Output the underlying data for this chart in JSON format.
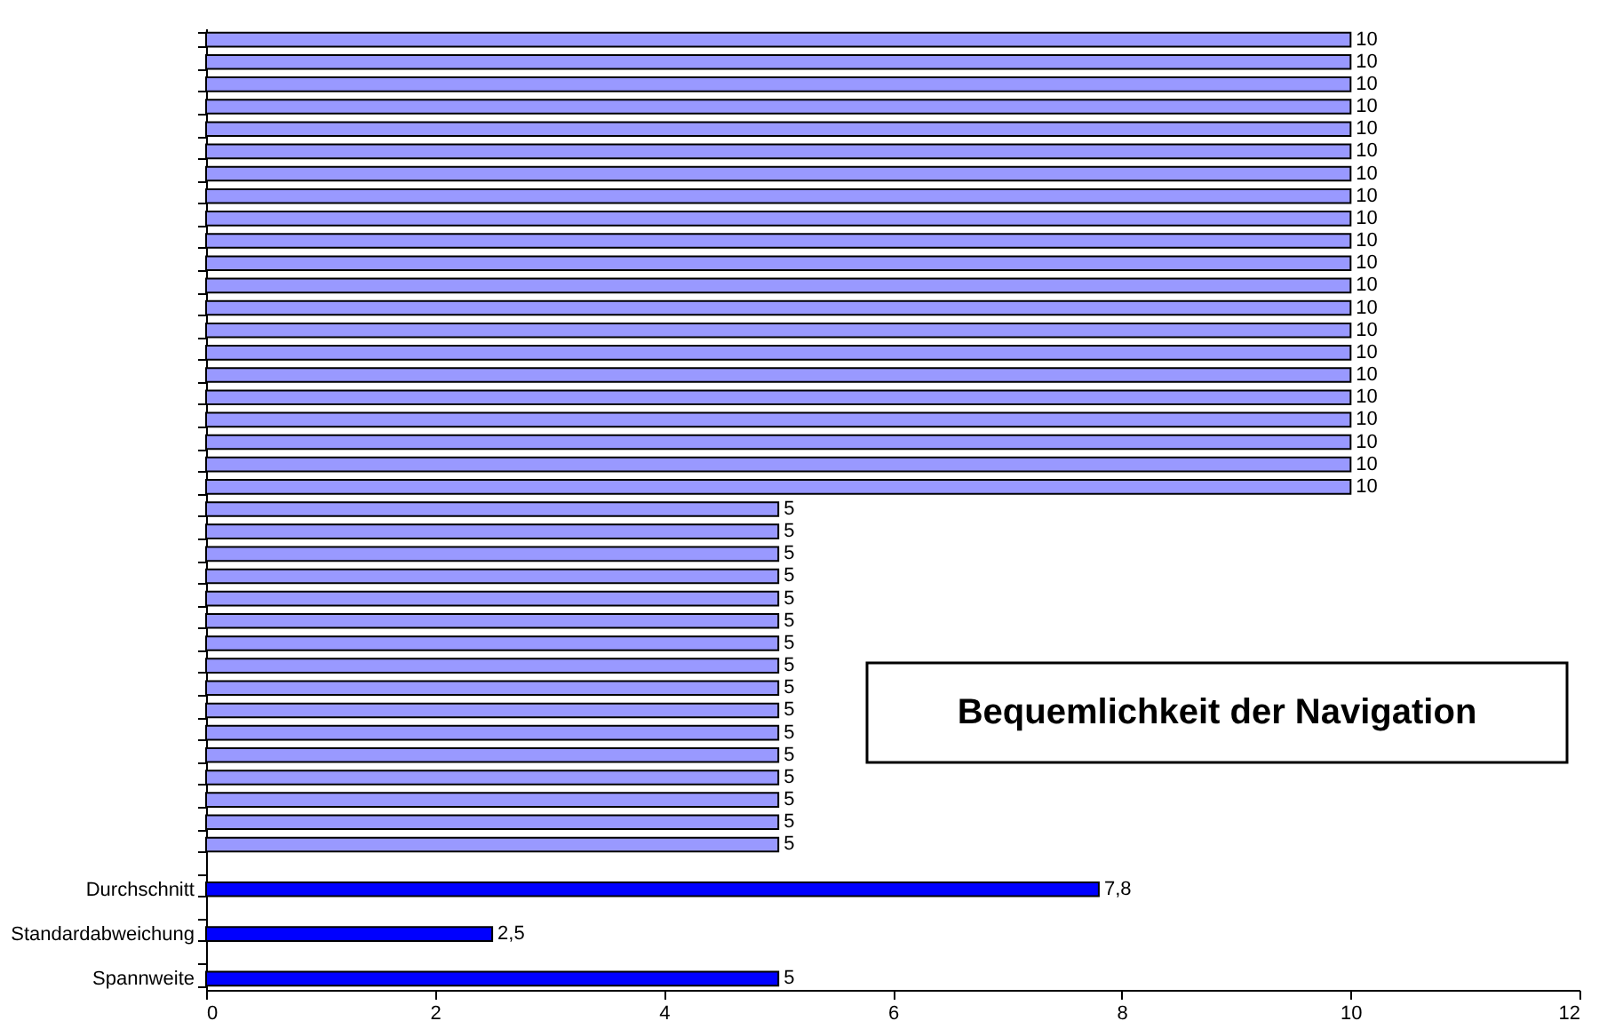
{
  "chart_data": {
    "type": "bar",
    "orientation": "horizontal",
    "title": "Bequemlichkeit der Navigation",
    "categories": [
      null,
      null,
      null,
      null,
      null,
      null,
      null,
      null,
      null,
      null,
      null,
      null,
      null,
      null,
      null,
      null,
      null,
      null,
      null,
      null,
      null,
      null,
      null,
      null,
      null,
      null,
      null,
      null,
      null,
      null,
      null,
      null,
      null,
      null,
      null,
      null,
      null,
      null,
      "Durchschnitt",
      null,
      "Standardabweichung",
      null,
      "Spannweite"
    ],
    "values": [
      10,
      10,
      10,
      10,
      10,
      10,
      10,
      10,
      10,
      10,
      10,
      10,
      10,
      10,
      10,
      10,
      10,
      10,
      10,
      10,
      10,
      5,
      5,
      5,
      5,
      5,
      5,
      5,
      5,
      5,
      5,
      5,
      5,
      5,
      5,
      5,
      5,
      null,
      7.8,
      null,
      2.5,
      null,
      5
    ],
    "value_labels": [
      "10",
      "10",
      "10",
      "10",
      "10",
      "10",
      "10",
      "10",
      "10",
      "10",
      "10",
      "10",
      "10",
      "10",
      "10",
      "10",
      "10",
      "10",
      "10",
      "10",
      "10",
      "5",
      "5",
      "5",
      "5",
      "5",
      "5",
      "5",
      "5",
      "5",
      "5",
      "5",
      "5",
      "5",
      "5",
      "5",
      "5",
      null,
      "7,8",
      null,
      "2,5",
      null,
      "5"
    ],
    "colors": [
      "#9999ff",
      "#9999ff",
      "#9999ff",
      "#9999ff",
      "#9999ff",
      "#9999ff",
      "#9999ff",
      "#9999ff",
      "#9999ff",
      "#9999ff",
      "#9999ff",
      "#9999ff",
      "#9999ff",
      "#9999ff",
      "#9999ff",
      "#9999ff",
      "#9999ff",
      "#9999ff",
      "#9999ff",
      "#9999ff",
      "#9999ff",
      "#9999ff",
      "#9999ff",
      "#9999ff",
      "#9999ff",
      "#9999ff",
      "#9999ff",
      "#9999ff",
      "#9999ff",
      "#9999ff",
      "#9999ff",
      "#9999ff",
      "#9999ff",
      "#9999ff",
      "#9999ff",
      "#9999ff",
      "#9999ff",
      "#9999ff",
      "#0000ff",
      "#0000ff",
      "#0000ff",
      "#0000ff",
      "#0000ff"
    ],
    "xlim": [
      0,
      12
    ],
    "xticks": [
      0,
      2,
      4,
      6,
      8,
      10,
      12
    ],
    "grid": false
  }
}
